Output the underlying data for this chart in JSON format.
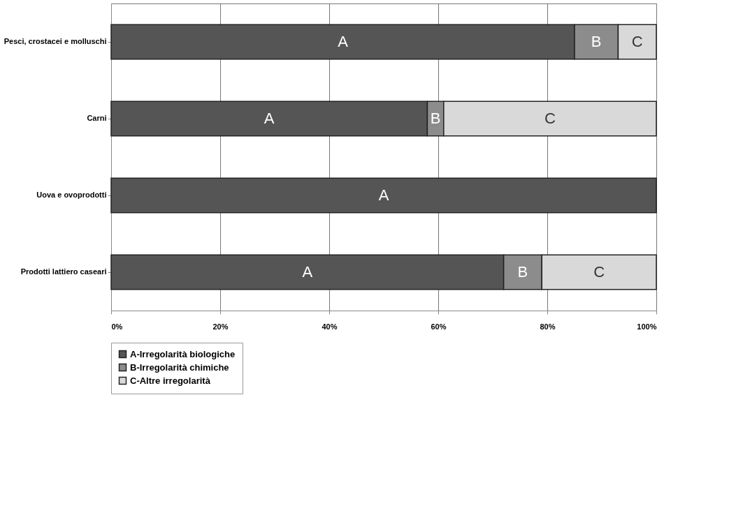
{
  "chart_data": {
    "type": "bar",
    "orientation": "horizontal",
    "stacked": true,
    "categories": [
      "Pesci, crostacei e molluschi",
      "Carni",
      "Uova e ovoprodotti",
      "Prodotti lattiero caseari"
    ],
    "series": [
      {
        "name": "A-Irregolarità biologiche",
        "color": "#555555",
        "values": [
          85,
          58,
          100,
          72
        ],
        "value_labels": [
          "A",
          "A",
          "A",
          "A"
        ]
      },
      {
        "name": "B-Irregolarità chimiche",
        "color": "#8c8c8c",
        "values": [
          8,
          3,
          0,
          7
        ],
        "value_labels": [
          "B",
          "B",
          null,
          "B"
        ]
      },
      {
        "name": "C-Altre irregolarità",
        "color": "#d9d9d9",
        "values": [
          7,
          39,
          0,
          21
        ],
        "value_labels": [
          "C",
          "C",
          null,
          "C"
        ]
      }
    ],
    "xlim": [
      0,
      100
    ],
    "xticks": [
      {
        "value": 0,
        "label": "0%"
      },
      {
        "value": 20,
        "label": "20%"
      },
      {
        "value": 40,
        "label": "40%"
      },
      {
        "value": 60,
        "label": "60%"
      },
      {
        "value": 80,
        "label": "80%"
      },
      {
        "value": 100,
        "label": "100%"
      }
    ],
    "grid": "x",
    "legend": "bottom"
  }
}
